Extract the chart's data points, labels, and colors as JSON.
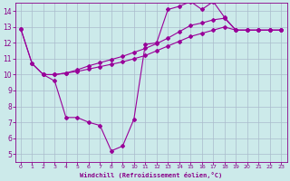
{
  "bg_color": "#cceaea",
  "line_color": "#990099",
  "grid_color": "#aabbcc",
  "xlabel": "Windchill (Refroidissement éolien,°C)",
  "xlabel_color": "#880088",
  "tick_color": "#880088",
  "xlim": [
    -0.5,
    23.5
  ],
  "ylim": [
    4.5,
    14.5
  ],
  "xticks": [
    0,
    1,
    2,
    3,
    4,
    5,
    6,
    7,
    8,
    9,
    10,
    11,
    12,
    13,
    14,
    15,
    16,
    17,
    18,
    19,
    20,
    21,
    22,
    23
  ],
  "yticks": [
    5,
    6,
    7,
    8,
    9,
    10,
    11,
    12,
    13,
    14
  ],
  "line1_x": [
    0,
    1,
    2,
    3,
    4,
    5,
    6,
    7,
    8,
    9,
    10,
    11,
    12,
    13,
    14,
    15,
    16,
    17,
    18,
    19,
    20,
    21,
    22,
    23
  ],
  "line1_y": [
    12.9,
    10.7,
    10.0,
    9.6,
    7.3,
    7.3,
    7.0,
    6.8,
    5.2,
    5.5,
    7.2,
    11.9,
    12.0,
    14.1,
    14.3,
    14.6,
    14.1,
    14.6,
    13.6,
    12.8,
    12.8,
    12.8,
    12.8,
    12.8
  ],
  "line2_x": [
    0,
    1,
    2,
    3,
    4,
    5,
    6,
    7,
    8,
    9,
    10,
    11,
    12,
    13,
    14,
    15,
    16,
    17,
    18,
    19,
    20,
    21,
    22,
    23
  ],
  "line2_y": [
    12.9,
    10.7,
    10.0,
    10.0,
    10.1,
    10.2,
    10.35,
    10.5,
    10.65,
    10.8,
    11.0,
    11.2,
    11.5,
    11.8,
    12.1,
    12.4,
    12.6,
    12.8,
    13.0,
    12.8,
    12.8,
    12.8,
    12.8,
    12.8
  ],
  "line3_x": [
    2,
    3,
    4,
    5,
    6,
    7,
    8,
    9,
    10,
    11,
    12,
    13,
    14,
    15,
    16,
    17,
    18,
    19,
    20,
    21,
    22,
    23
  ],
  "line3_y": [
    10.0,
    10.0,
    10.1,
    10.3,
    10.55,
    10.75,
    10.95,
    11.15,
    11.4,
    11.65,
    11.95,
    12.3,
    12.7,
    13.1,
    13.25,
    13.45,
    13.55,
    12.8,
    12.8,
    12.8,
    12.8,
    12.8
  ]
}
